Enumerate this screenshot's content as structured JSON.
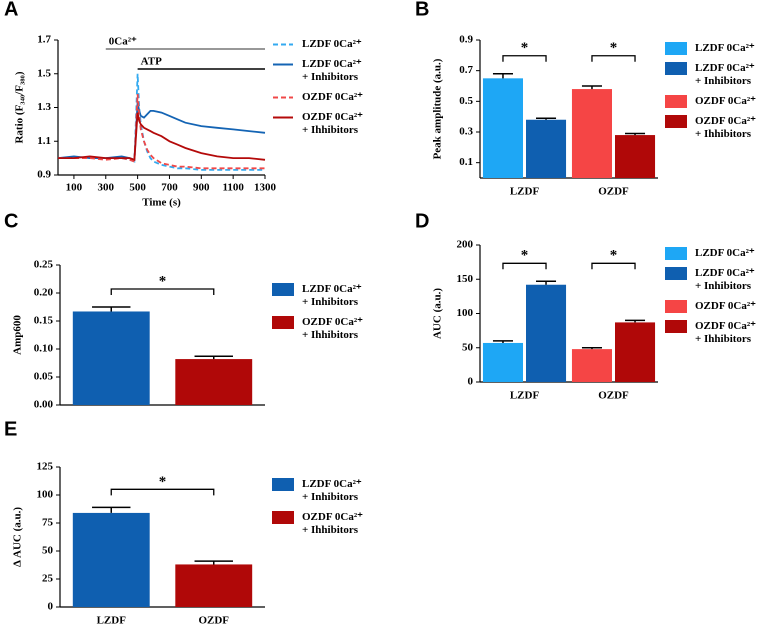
{
  "chart_data": [
    {
      "panel": "A",
      "type": "line",
      "xlabel": "Time (s)",
      "ylabel": "Ratio (F₃₄₀/F₃₈₀)",
      "x": [
        0,
        100,
        200,
        300,
        400,
        450,
        480,
        500,
        510,
        520,
        540,
        560,
        580,
        600,
        650,
        700,
        750,
        800,
        900,
        1000,
        1100,
        1200,
        1300
      ],
      "xlim": [
        0,
        1300
      ],
      "xticks": [
        100,
        300,
        500,
        700,
        900,
        1100,
        1300
      ],
      "ylim": [
        0.9,
        1.7
      ],
      "yticks": [
        0.9,
        1.1,
        1.3,
        1.5,
        1.7
      ],
      "annotations": [
        {
          "text": "0Ca²⁺",
          "x": [
            300,
            1300
          ]
        },
        {
          "text": "ATP",
          "x": [
            500,
            1300
          ]
        }
      ],
      "series": [
        {
          "name": "LZDF 0Ca²⁺",
          "color": "#33aaf0",
          "dashed": true,
          "values": [
            1.0,
            1.0,
            1.0,
            1.0,
            1.0,
            0.99,
            0.98,
            1.5,
            1.3,
            1.2,
            1.1,
            1.04,
            1.0,
            0.98,
            0.96,
            0.95,
            0.94,
            0.94,
            0.93,
            0.93,
            0.93,
            0.93,
            0.93
          ]
        },
        {
          "name": "LZDF 0Ca²⁺\n+ Inhibitors",
          "color": "#1464b4",
          "dashed": false,
          "values": [
            1.0,
            1.01,
            1.0,
            1.0,
            1.01,
            1.0,
            0.99,
            1.33,
            1.28,
            1.25,
            1.24,
            1.26,
            1.28,
            1.28,
            1.27,
            1.25,
            1.23,
            1.21,
            1.19,
            1.18,
            1.17,
            1.16,
            1.15
          ]
        },
        {
          "name": "OZDF 0Ca²⁺",
          "color": "#f04848",
          "dashed": true,
          "values": [
            1.0,
            1.0,
            1.0,
            0.99,
            1.0,
            0.99,
            0.98,
            1.38,
            1.25,
            1.17,
            1.1,
            1.05,
            1.02,
            1.0,
            0.97,
            0.96,
            0.95,
            0.95,
            0.94,
            0.94,
            0.94,
            0.94,
            0.94
          ]
        },
        {
          "name": "OZDF 0Ca²⁺\n+ Ihhibitors",
          "color": "#b40a0a",
          "dashed": false,
          "values": [
            1.0,
            1.0,
            1.01,
            1.0,
            1.0,
            1.0,
            0.99,
            1.27,
            1.22,
            1.2,
            1.18,
            1.17,
            1.16,
            1.15,
            1.13,
            1.1,
            1.08,
            1.06,
            1.03,
            1.01,
            1.0,
            1.0,
            0.99
          ]
        }
      ]
    },
    {
      "panel": "B",
      "type": "bar",
      "ylabel": "Peak amplitude (a.u.)",
      "categories": [
        "LZDF",
        "OZDF"
      ],
      "ylim": [
        0,
        0.9
      ],
      "yticks": [
        0.1,
        0.3,
        0.5,
        0.7,
        0.9
      ],
      "significance": [
        "*",
        "*"
      ],
      "series": [
        {
          "name": "LZDF 0Ca²⁺",
          "color": "#1ea7f5",
          "values": [
            0.65,
            null
          ],
          "errors": [
            0.03,
            null
          ]
        },
        {
          "name": "LZDF 0Ca²⁺\n+ Inhibitors",
          "color": "#0f5fb0",
          "values": [
            0.38,
            null
          ],
          "errors": [
            0.01,
            null
          ]
        },
        {
          "name": "OZDF 0Ca²⁺",
          "color": "#f54545",
          "values": [
            null,
            0.58
          ],
          "errors": [
            null,
            0.02
          ]
        },
        {
          "name": "OZDF 0Ca²⁺\n+ Ihhibitors",
          "color": "#b00808",
          "values": [
            null,
            0.28
          ],
          "errors": [
            null,
            0.01
          ]
        }
      ]
    },
    {
      "panel": "C",
      "type": "bar",
      "ylabel": "Amp600",
      "categories": [
        null,
        null
      ],
      "ylim": [
        0,
        0.25
      ],
      "yticks": [
        {
          "value": 0,
          "label": "0.00"
        },
        0.05,
        {
          "value": 0.1,
          "label": "0.10"
        },
        0.15,
        {
          "value": 0.2,
          "label": "0.20"
        },
        0.25
      ],
      "significance": [
        "*"
      ],
      "series": [
        {
          "name": "LZDF 0Ca²⁺\n+ Inhibitors",
          "color": "#0f5fb0",
          "values": [
            0.167,
            null
          ],
          "errors": [
            0.008,
            null
          ]
        },
        {
          "name": "OZDF 0Ca²⁺\n+ Ihhibitors",
          "color": "#b00808",
          "values": [
            null,
            0.082
          ],
          "errors": [
            null,
            0.005
          ]
        }
      ]
    },
    {
      "panel": "D",
      "type": "bar",
      "ylabel": "AUC (a.u.)",
      "categories": [
        "LZDF",
        "OZDF"
      ],
      "ylim": [
        0,
        200
      ],
      "yticks": [
        0,
        50,
        100,
        150,
        200
      ],
      "significance": [
        "*",
        "*"
      ],
      "series": [
        {
          "name": "LZDF 0Ca²⁺",
          "color": "#1ea7f5",
          "values": [
            57,
            null
          ],
          "errors": [
            3,
            null
          ]
        },
        {
          "name": "LZDF 0Ca²⁺\n+ Inhibitors",
          "color": "#0f5fb0",
          "values": [
            142,
            null
          ],
          "errors": [
            5,
            null
          ]
        },
        {
          "name": "OZDF 0Ca²⁺",
          "color": "#f54545",
          "values": [
            null,
            48
          ],
          "errors": [
            null,
            2
          ]
        },
        {
          "name": "OZDF 0Ca²⁺\n+ Ihhibitors",
          "color": "#b00808",
          "values": [
            null,
            87
          ],
          "errors": [
            null,
            3
          ]
        }
      ]
    },
    {
      "panel": "E",
      "type": "bar",
      "ylabel": "Δ AUC (a.u.)",
      "categories": [
        "LZDF",
        "OZDF"
      ],
      "ylim": [
        0,
        125
      ],
      "yticks": [
        0,
        25,
        50,
        75,
        100,
        125
      ],
      "significance": [
        "*"
      ],
      "series": [
        {
          "name": "LZDF 0Ca²⁺\n+ Inhibitors",
          "color": "#0f5fb0",
          "values": [
            84,
            null
          ],
          "errors": [
            5,
            null
          ]
        },
        {
          "name": "OZDF 0Ca²⁺\n+ Ihhibitors",
          "color": "#b00808",
          "values": [
            null,
            38
          ],
          "errors": [
            null,
            3
          ]
        }
      ]
    }
  ]
}
